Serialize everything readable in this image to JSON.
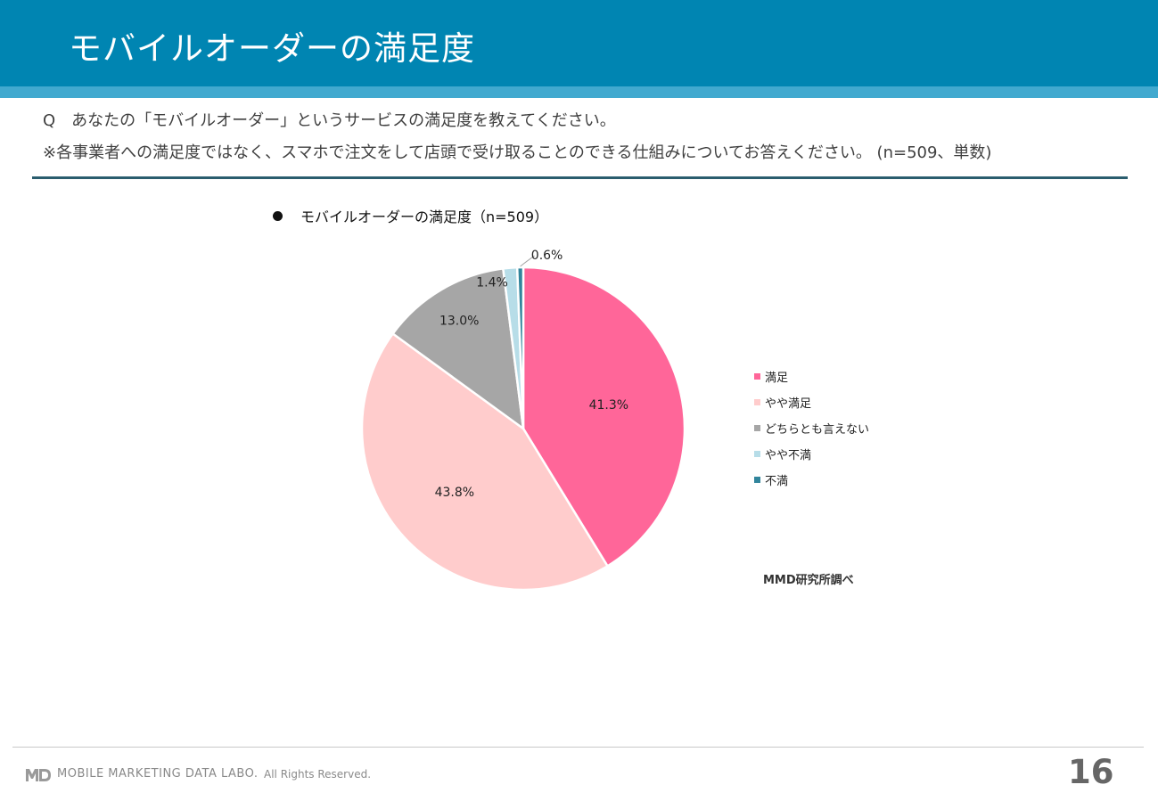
{
  "header": {
    "title": "モバイルオーダーの満足度"
  },
  "question": {
    "text": "Q　あなたの「モバイルオーダー」というサービスの満足度を教えてください。",
    "note": "※各事業者への満足度ではなく、スマホで注文をして店頭で受け取ることのできる仕組みについてお答えください。 (n=509、単数)"
  },
  "chart_data": {
    "type": "pie",
    "title": "モバイルオーダーの満足度（n=509）",
    "categories": [
      "満足",
      "やや満足",
      "どちらとも言えない",
      "やや不満",
      "不満"
    ],
    "values": [
      41.3,
      43.8,
      13.0,
      1.4,
      0.6
    ],
    "value_labels": [
      "41.3%",
      "43.8%",
      "13.0%",
      "1.4%",
      "0.6%"
    ],
    "colors": [
      "#ff6699",
      "#ffcccc",
      "#a6a6a6",
      "#b7dde8",
      "#31859c"
    ],
    "legend": "right",
    "start": "12 o'clock, clockwise"
  },
  "source": "MMD研究所調べ",
  "footer": {
    "company": "MOBILE MARKETING DATA LABO.",
    "rights": "All Rights Reserved.",
    "page_number": "16"
  }
}
